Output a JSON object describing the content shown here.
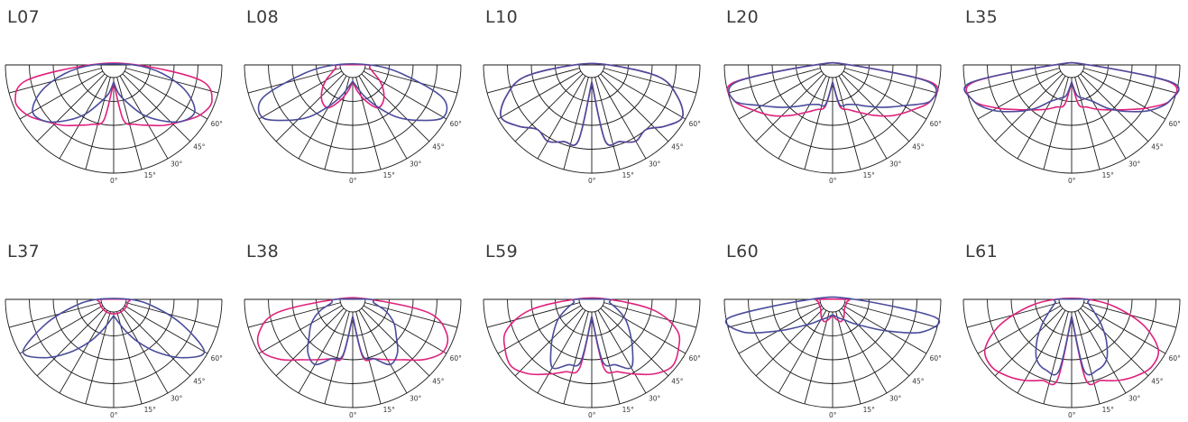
{
  "colors": {
    "c0": "#e0217c",
    "c90": "#4a4c9c",
    "grid": "#1a1a1a"
  },
  "tick_labels": [
    "0°",
    "15°",
    "30°",
    "45°",
    "60°"
  ],
  "diagrams": [
    {
      "label": "L07",
      "c0": [
        0.05,
        0.47,
        0.55,
        0.62,
        0.72,
        0.82,
        0.95,
        1.0,
        0.82,
        0.12
      ],
      "c90": [
        0.05,
        0.18,
        0.3,
        0.48,
        0.65,
        0.82,
        0.88,
        0.7,
        0.4,
        0.08
      ]
    },
    {
      "label": "L08",
      "c0": [
        0.04,
        0.15,
        0.28,
        0.4,
        0.38,
        0.3,
        0.2,
        0.1,
        0.05,
        0.02
      ],
      "c90": [
        0.04,
        0.1,
        0.22,
        0.38,
        0.6,
        0.8,
        1.0,
        0.9,
        0.4,
        0.05
      ]
    },
    {
      "label": "L10",
      "c0": [
        0.05,
        0.7,
        0.75,
        0.82,
        0.78,
        0.9,
        1.0,
        0.85,
        0.6,
        0.05
      ],
      "c90": [
        0.05,
        0.7,
        0.75,
        0.82,
        0.78,
        0.9,
        1.0,
        0.85,
        0.6,
        0.05
      ]
    },
    {
      "label": "L20",
      "c0": [
        0.05,
        0.32,
        0.38,
        0.46,
        0.58,
        0.72,
        0.85,
        1.0,
        0.95,
        0.05
      ],
      "c90": [
        0.05,
        0.3,
        0.32,
        0.36,
        0.45,
        0.58,
        0.75,
        1.0,
        0.92,
        0.05
      ]
    },
    {
      "label": "L35",
      "c0": [
        0.05,
        0.3,
        0.35,
        0.42,
        0.5,
        0.62,
        0.8,
        1.0,
        0.95,
        0.05
      ],
      "c90": [
        0.05,
        0.2,
        0.25,
        0.32,
        0.48,
        0.65,
        0.85,
        1.0,
        0.98,
        0.05
      ]
    },
    {
      "label": "L37",
      "c0": [
        0.02,
        0.02,
        0.02,
        0.02,
        0.02,
        0.02,
        0.02,
        0.02,
        0.02,
        0.02
      ],
      "c90": [
        0.04,
        0.1,
        0.22,
        0.4,
        0.62,
        0.85,
        1.0,
        0.65,
        0.3,
        0.04
      ]
    },
    {
      "label": "L38",
      "c0": [
        0.05,
        0.5,
        0.55,
        0.62,
        0.72,
        0.88,
        1.0,
        0.95,
        0.7,
        0.05
      ],
      "c90": [
        0.05,
        0.48,
        0.55,
        0.68,
        0.62,
        0.48,
        0.38,
        0.25,
        0.1,
        0.05
      ]
    },
    {
      "label": "L59",
      "c0": [
        0.05,
        0.62,
        0.7,
        0.8,
        0.92,
        1.0,
        0.95,
        0.85,
        0.55,
        0.05
      ],
      "c90": [
        0.05,
        0.55,
        0.62,
        0.72,
        0.55,
        0.4,
        0.28,
        0.15,
        0.06,
        0.04
      ]
    },
    {
      "label": "L60",
      "c0": [
        0.03,
        0.08,
        0.12,
        0.1,
        0.06,
        0.03,
        0.02,
        0.02,
        0.02,
        0.02
      ],
      "c90": [
        0.03,
        0.05,
        0.08,
        0.12,
        0.2,
        0.32,
        0.55,
        0.9,
        1.0,
        0.1
      ]
    },
    {
      "label": "L61",
      "c0": [
        0.05,
        0.75,
        0.8,
        0.88,
        0.95,
        1.0,
        0.95,
        0.7,
        0.35,
        0.04
      ],
      "c90": [
        0.05,
        0.65,
        0.68,
        0.62,
        0.45,
        0.28,
        0.15,
        0.08,
        0.04,
        0.03
      ]
    }
  ]
}
